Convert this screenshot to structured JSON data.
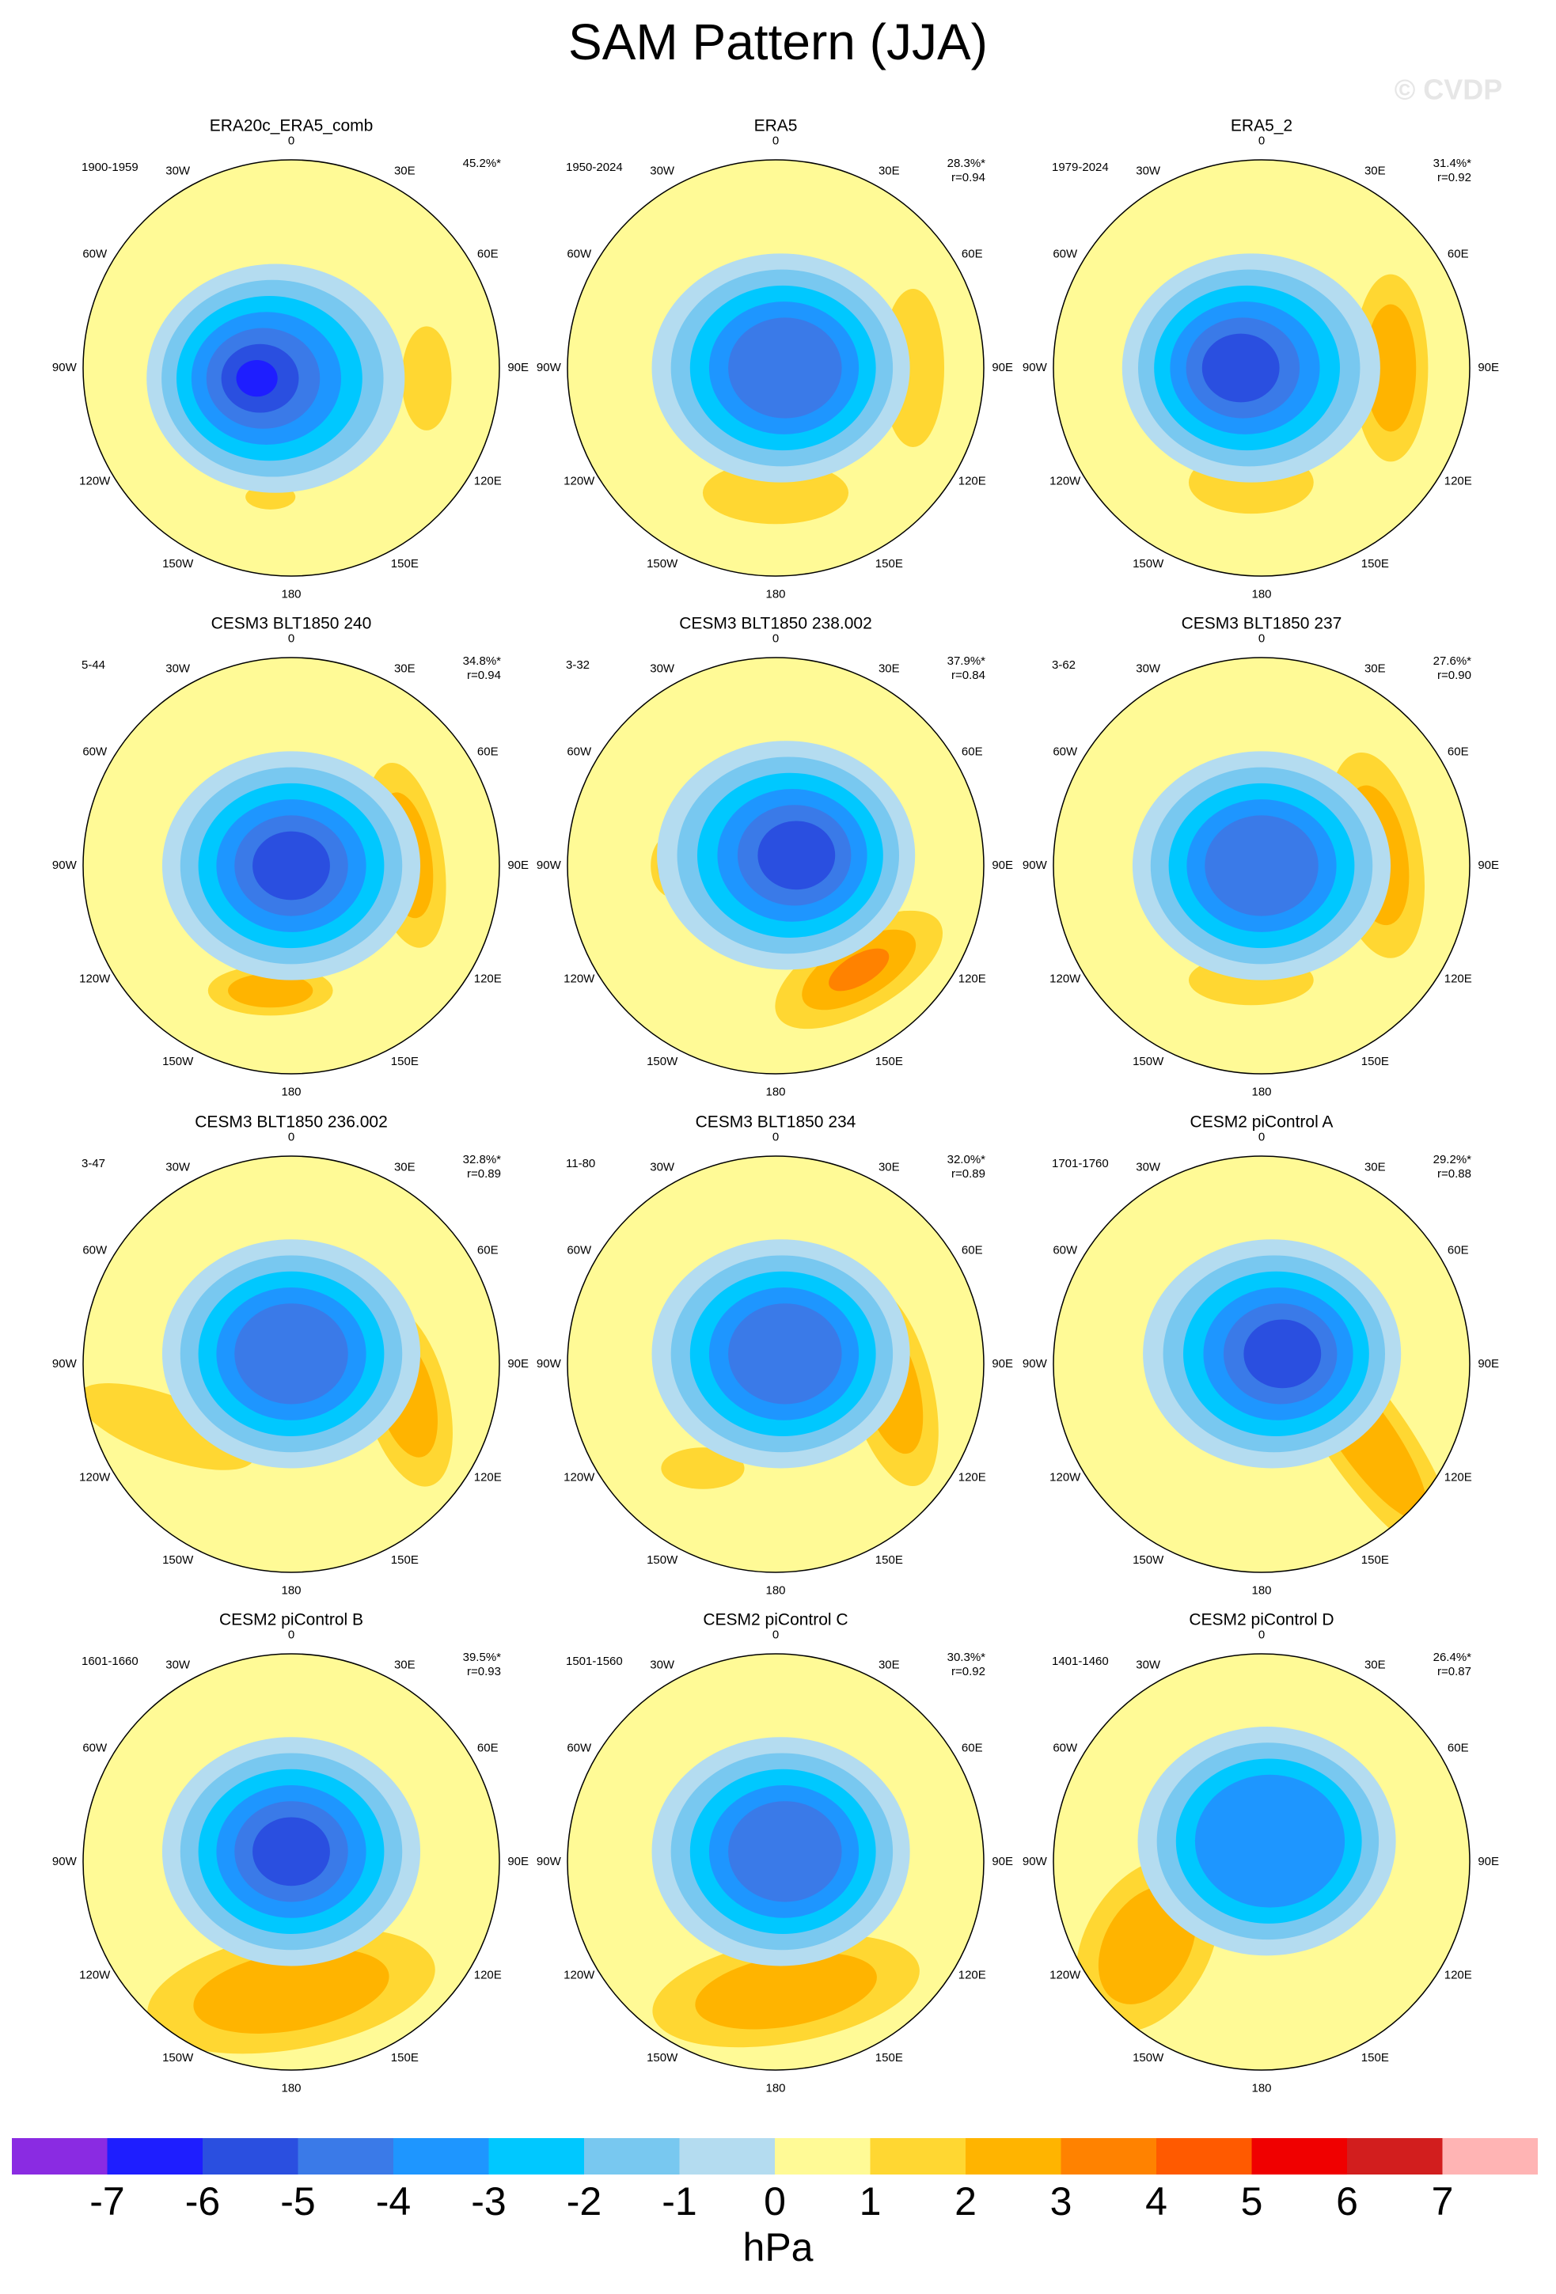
{
  "title": "SAM Pattern (JJA)",
  "watermark": "© CVDP",
  "lon_labels": [
    "0",
    "30E",
    "60E",
    "90E",
    "120E",
    "150E",
    "180",
    "150W",
    "120W",
    "90W",
    "60W",
    "30W"
  ],
  "panels": [
    {
      "title": "ERA20c_ERA5_comb",
      "period": "1900-1959",
      "pct": "45.2%*"
    },
    {
      "title": "ERA5",
      "period": "1950-2024",
      "pct": "28.3%*",
      "r": "r=0.94"
    },
    {
      "title": "ERA5_2",
      "period": "1979-2024",
      "pct": "31.4%*",
      "r": "r=0.92"
    },
    {
      "title": "CESM3 BLT1850 240",
      "period": "5-44",
      "pct": "34.8%*",
      "r": "r=0.94"
    },
    {
      "title": "CESM3 BLT1850 238.002",
      "period": "3-32",
      "pct": "37.9%*",
      "r": "r=0.84"
    },
    {
      "title": "CESM3 BLT1850 237",
      "period": "3-62",
      "pct": "27.6%*",
      "r": "r=0.90"
    },
    {
      "title": "CESM3 BLT1850 236.002",
      "period": "3-47",
      "pct": "32.8%*",
      "r": "r=0.89"
    },
    {
      "title": "CESM3 BLT1850 234",
      "period": "11-80",
      "pct": "32.0%*",
      "r": "r=0.89"
    },
    {
      "title": "CESM2 piControl A",
      "period": "1701-1760",
      "pct": "29.2%*",
      "r": "r=0.88"
    },
    {
      "title": "CESM2 piControl B",
      "period": "1601-1660",
      "pct": "39.5%*",
      "r": "r=0.93"
    },
    {
      "title": "CESM2 piControl C",
      "period": "1501-1560",
      "pct": "30.3%*",
      "r": "r=0.92"
    },
    {
      "title": "CESM2 piControl D",
      "period": "1401-1460",
      "pct": "26.4%*",
      "r": "r=0.87"
    }
  ],
  "colorbar": {
    "colors": [
      "#8a2be2",
      "#1e1eff",
      "#2a4fe0",
      "#3a7ae8",
      "#1e96ff",
      "#00c8ff",
      "#78c8f0",
      "#b4dcf0",
      "#fffa96",
      "#ffd732",
      "#ffb400",
      "#ff8200",
      "#ff5a00",
      "#f00000",
      "#d21e1e",
      "#ffb4b4"
    ],
    "ticks": [
      -7,
      -6,
      -5,
      -4,
      -3,
      -2,
      -1,
      0,
      1,
      2,
      3,
      4,
      5,
      6,
      7
    ],
    "label": "hPa"
  }
}
